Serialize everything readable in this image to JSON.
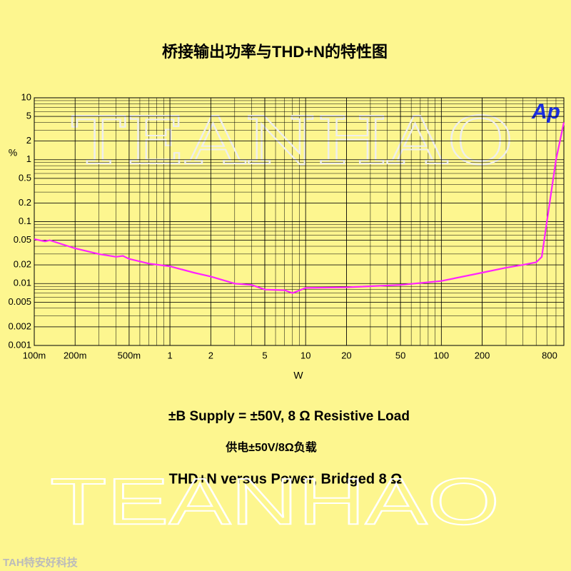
{
  "chart_data": {
    "type": "line",
    "title": "桥接输出功率与THD+N的特性图",
    "xlabel": "W",
    "ylabel": "%",
    "annotations": [
      "±B Supply = ±50V,  8 Ω Resistive Load",
      "供电±50V/8Ω负载",
      "THD+N versus Power, Bridged 8 Ω"
    ],
    "watermark": "TEANHAO",
    "logo": "Ap",
    "footer": "TAH特安好科技",
    "x": [
      0.1,
      0.12,
      0.13,
      0.2,
      0.3,
      0.4,
      0.45,
      0.5,
      0.7,
      1,
      1.5,
      2,
      3,
      4,
      5,
      7,
      8,
      10,
      20,
      50,
      100,
      200,
      300,
      400,
      500,
      550,
      600,
      700,
      800
    ],
    "values": [
      0.052,
      0.048,
      0.05,
      0.037,
      0.03,
      0.027,
      0.028,
      0.025,
      0.021,
      0.019,
      0.015,
      0.013,
      0.01,
      0.0095,
      0.008,
      0.0078,
      0.007,
      0.0085,
      0.0087,
      0.0095,
      0.011,
      0.015,
      0.018,
      0.02,
      0.022,
      0.027,
      0.1,
      1,
      4
    ],
    "color": "#ff22ff",
    "xlog": true,
    "ylog": true,
    "grid": true,
    "xlim": [
      0.1,
      800
    ],
    "ylim": [
      0.001,
      10
    ],
    "xticks": [
      {
        "value": 0.1,
        "label": "100m"
      },
      {
        "value": 0.2,
        "label": "200m"
      },
      {
        "value": 0.5,
        "label": "500m"
      },
      1,
      2,
      5,
      10,
      20,
      50,
      100,
      200,
      800
    ],
    "yticks": [
      10,
      5,
      2,
      1,
      0.5,
      0.2,
      0.1,
      0.05,
      0.02,
      0.01,
      0.005,
      0.002,
      0.001
    ]
  }
}
